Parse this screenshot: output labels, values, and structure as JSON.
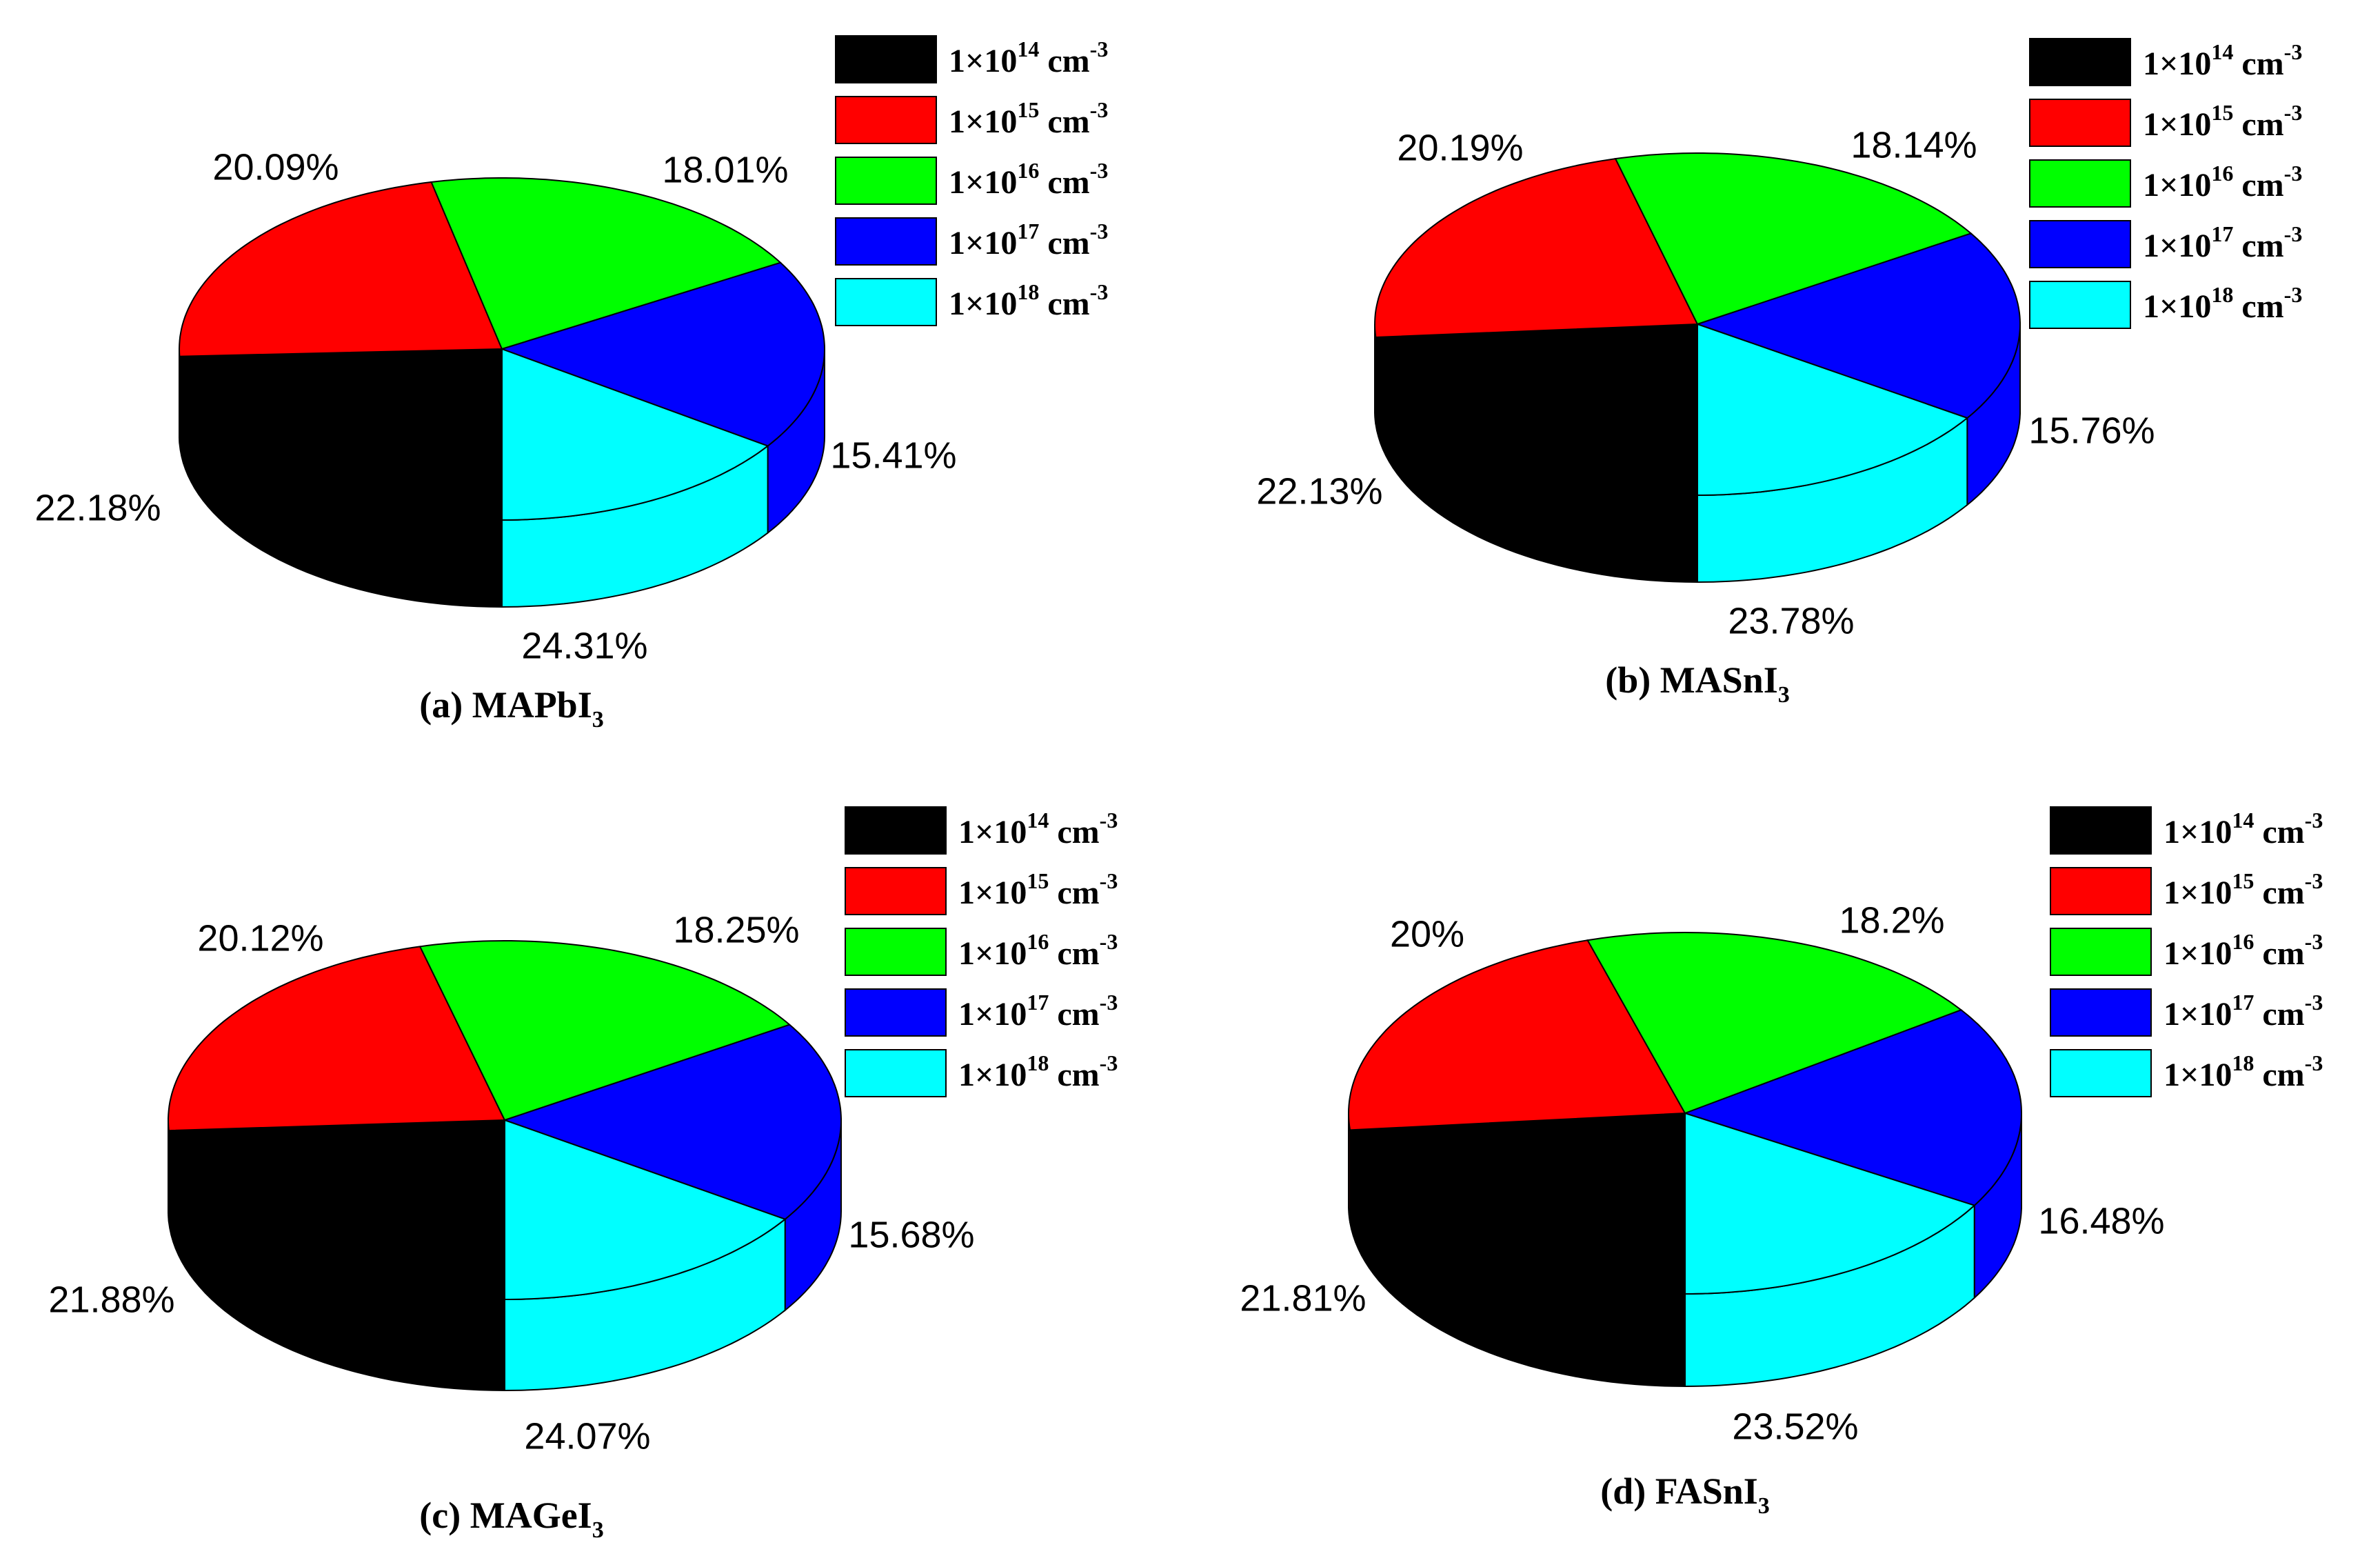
{
  "chart_data": [
    {
      "type": "pie",
      "caption": "(a) MAPbI",
      "caption_sub": "3",
      "legend": [
        {
          "base": "1×10",
          "exp": "14",
          "unit": " cm",
          "unit_exp": "-3",
          "color": "#000000"
        },
        {
          "base": "1×10",
          "exp": "15",
          "unit": " cm",
          "unit_exp": "-3",
          "color": "#ff0000"
        },
        {
          "base": "1×10",
          "exp": "16",
          "unit": " cm",
          "unit_exp": "-3",
          "color": "#00ff00"
        },
        {
          "base": "1×10",
          "exp": "17",
          "unit": " cm",
          "unit_exp": "-3",
          "color": "#0000ff"
        },
        {
          "base": "1×10",
          "exp": "18",
          "unit": " cm",
          "unit_exp": "-3",
          "color": "#00ffff"
        }
      ],
      "values": [
        24.31,
        22.18,
        20.09,
        18.01,
        15.41
      ],
      "labels": [
        "24.31%",
        "22.18%",
        "20.09%",
        "18.01%",
        "15.41%"
      ]
    },
    {
      "type": "pie",
      "caption": "(b) MASnI",
      "caption_sub": "3",
      "legend": [
        {
          "base": "1×10",
          "exp": "14",
          "unit": " cm",
          "unit_exp": "-3",
          "color": "#000000"
        },
        {
          "base": "1×10",
          "exp": "15",
          "unit": " cm",
          "unit_exp": "-3",
          "color": "#ff0000"
        },
        {
          "base": "1×10",
          "exp": "16",
          "unit": " cm",
          "unit_exp": "-3",
          "color": "#00ff00"
        },
        {
          "base": "1×10",
          "exp": "17",
          "unit": " cm",
          "unit_exp": "-3",
          "color": "#0000ff"
        },
        {
          "base": "1×10",
          "exp": "18",
          "unit": " cm",
          "unit_exp": "-3",
          "color": "#00ffff"
        }
      ],
      "values": [
        23.78,
        22.13,
        20.19,
        18.14,
        15.76
      ],
      "labels": [
        "23.78%",
        "22.13%",
        "20.19%",
        "18.14%",
        "15.76%"
      ]
    },
    {
      "type": "pie",
      "caption": "(c) MAGeI",
      "caption_sub": "3",
      "legend": [
        {
          "base": "1×10",
          "exp": "14",
          "unit": " cm",
          "unit_exp": "-3",
          "color": "#000000"
        },
        {
          "base": "1×10",
          "exp": "15",
          "unit": " cm",
          "unit_exp": "-3",
          "color": "#ff0000"
        },
        {
          "base": "1×10",
          "exp": "16",
          "unit": " cm",
          "unit_exp": "-3",
          "color": "#00ff00"
        },
        {
          "base": "1×10",
          "exp": "17",
          "unit": " cm",
          "unit_exp": "-3",
          "color": "#0000ff"
        },
        {
          "base": "1×10",
          "exp": "18",
          "unit": " cm",
          "unit_exp": "-3",
          "color": "#00ffff"
        }
      ],
      "values": [
        24.07,
        21.88,
        20.12,
        18.25,
        15.68
      ],
      "labels": [
        "24.07%",
        "21.88%",
        "20.12%",
        "18.25%",
        "15.68%"
      ]
    },
    {
      "type": "pie",
      "caption": "(d) FASnI",
      "caption_sub": "3",
      "legend": [
        {
          "base": "1×10",
          "exp": "14",
          "unit": " cm",
          "unit_exp": "-3",
          "color": "#000000"
        },
        {
          "base": "1×10",
          "exp": "15",
          "unit": " cm",
          "unit_exp": "-3",
          "color": "#ff0000"
        },
        {
          "base": "1×10",
          "exp": "16",
          "unit": " cm",
          "unit_exp": "-3",
          "color": "#00ff00"
        },
        {
          "base": "1×10",
          "exp": "17",
          "unit": " cm",
          "unit_exp": "-3",
          "color": "#0000ff"
        },
        {
          "base": "1×10",
          "exp": "18",
          "unit": " cm",
          "unit_exp": "-3",
          "color": "#00ffff"
        }
      ],
      "values": [
        23.52,
        21.81,
        20.0,
        18.2,
        16.48
      ],
      "labels": [
        "23.52%",
        "21.81%",
        "20%",
        "18.2%",
        "16.48%"
      ]
    }
  ]
}
